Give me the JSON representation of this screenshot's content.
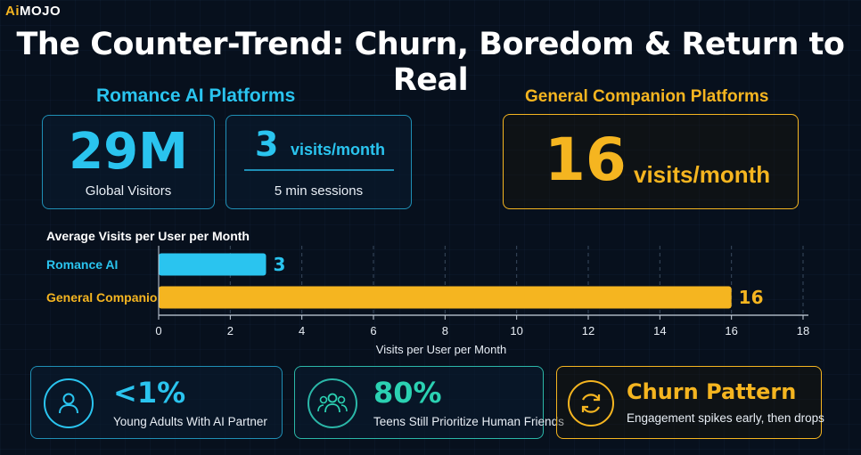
{
  "brand": {
    "logo_ai": "Ai",
    "logo_rest": "MOJO"
  },
  "title": "The Counter-Trend: Churn, Boredom & Return to Real",
  "romance": {
    "section_label": "Romance AI Platforms",
    "visitors_value": "29M",
    "visitors_label": "Global Visitors",
    "visits_value": "3",
    "visits_unit": "visits/month",
    "sessions_label": "5 min sessions"
  },
  "general": {
    "section_label": "General Companion Platforms",
    "visits_value": "16",
    "visits_unit": "visits/month"
  },
  "chart_data": {
    "type": "bar",
    "orientation": "horizontal",
    "title": "Average Visits per User per Month",
    "categories": [
      "Romance AI",
      "General Companion"
    ],
    "values": [
      3,
      16
    ],
    "data_labels": [
      "3",
      "16"
    ],
    "colors": [
      "#2ac4ef",
      "#f5b520"
    ],
    "xlabel": "Visits per User per Month",
    "ylabel": "",
    "xlim": [
      0,
      18
    ],
    "xticks": [
      0,
      2,
      4,
      6,
      8,
      10,
      12,
      14,
      16,
      18
    ],
    "grid": true
  },
  "stats": [
    {
      "value": "<1%",
      "label": "Young Adults With AI Partner",
      "icon": "person-icon"
    },
    {
      "value": "80%",
      "label": "Teens Still Prioritize Human Friends",
      "icon": "group-icon"
    },
    {
      "value": "Churn Pattern",
      "label": "Engagement spikes early, then drops",
      "icon": "cycle-arrows-icon"
    }
  ],
  "colors": {
    "cyan": "#2ac4ef",
    "gold": "#f5b520",
    "teal": "#2bd1b2",
    "background": "#07101d"
  }
}
